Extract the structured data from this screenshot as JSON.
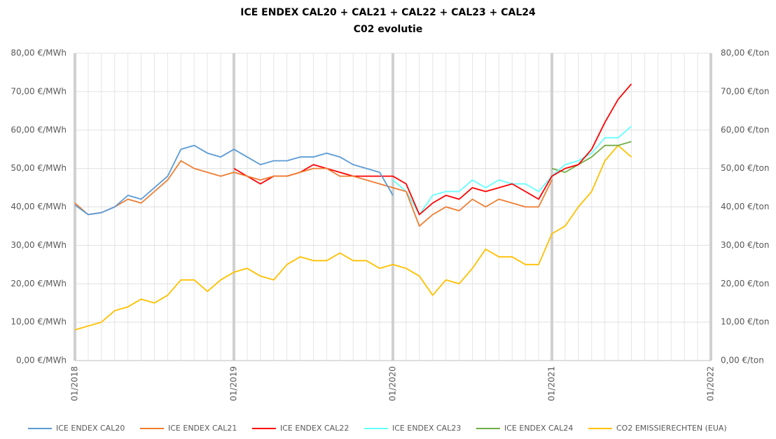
{
  "chart_data": {
    "type": "line",
    "title": "ICE ENDEX CAL20 + CAL21 + CAL22 + CAL23 + CAL24",
    "subtitle": "C02 evolutie",
    "x": [
      "01/2018",
      "02/2018",
      "03/2018",
      "04/2018",
      "05/2018",
      "06/2018",
      "07/2018",
      "08/2018",
      "09/2018",
      "10/2018",
      "11/2018",
      "12/2018",
      "01/2019",
      "02/2019",
      "03/2019",
      "04/2019",
      "05/2019",
      "06/2019",
      "07/2019",
      "08/2019",
      "09/2019",
      "10/2019",
      "11/2019",
      "12/2019",
      "01/2020",
      "02/2020",
      "03/2020",
      "04/2020",
      "05/2020",
      "06/2020",
      "07/2020",
      "08/2020",
      "09/2020",
      "10/2020",
      "11/2020",
      "12/2020",
      "01/2021",
      "02/2021",
      "03/2021",
      "04/2021",
      "05/2021",
      "06/2021",
      "07/2021"
    ],
    "xlim": [
      "01/2018",
      "01/2022"
    ],
    "xticks": [
      "01/2018",
      "01/2019",
      "01/2020",
      "01/2021",
      "01/2022"
    ],
    "ylim": [
      0,
      80
    ],
    "yticks": [
      {
        "value": 0,
        "label": "0,00 €/MWh"
      },
      {
        "value": 10,
        "label": "10,00 €/MWh"
      },
      {
        "value": 20,
        "label": "20,00 €/MWh"
      },
      {
        "value": 30,
        "label": "30,00 €/MWh"
      },
      {
        "value": 40,
        "label": "40,00 €/MWh"
      },
      {
        "value": 50,
        "label": "50,00 €/MWh"
      },
      {
        "value": 60,
        "label": "60,00 €/MWh"
      },
      {
        "value": 70,
        "label": "70,00 €/MWh"
      },
      {
        "value": 80,
        "label": "80,00 €/MWh"
      }
    ],
    "y2lim": [
      0,
      80
    ],
    "y2ticks": [
      {
        "value": 0,
        "label": "0,00 €/ton"
      },
      {
        "value": 10,
        "label": "10,00 €/ton"
      },
      {
        "value": 20,
        "label": "20,00 €/ton"
      },
      {
        "value": 30,
        "label": "30,00 €/ton"
      },
      {
        "value": 40,
        "label": "40,00 €/ton"
      },
      {
        "value": 50,
        "label": "50,00 €/ton"
      },
      {
        "value": 60,
        "label": "60,00 €/ton"
      },
      {
        "value": 70,
        "label": "70,00 €/ton"
      },
      {
        "value": 80,
        "label": "80,00 €/ton"
      }
    ],
    "legend": "bottom",
    "series": [
      {
        "name": "ICE ENDEX CAL20",
        "color": "#5b9bd5",
        "values": [
          40.5,
          38,
          38.5,
          40,
          43,
          42,
          45,
          48,
          55,
          56,
          54,
          53,
          55,
          53,
          51,
          52,
          52,
          53,
          53,
          54,
          53,
          51,
          50,
          49,
          43,
          null,
          null,
          null,
          null,
          null,
          null,
          null,
          null,
          null,
          null,
          null,
          null,
          null,
          null,
          null,
          null,
          null,
          null
        ]
      },
      {
        "name": "ICE ENDEX CAL21",
        "color": "#ed7d31",
        "values": [
          41,
          38,
          38.5,
          40,
          42,
          41,
          44,
          47,
          52,
          50,
          49,
          48,
          49,
          48,
          47,
          48,
          48,
          49,
          50,
          50,
          48,
          48,
          47,
          46,
          45,
          44,
          35,
          38,
          40,
          39,
          42,
          40,
          42,
          41,
          40,
          40,
          47,
          null,
          null,
          null,
          null,
          null,
          null
        ]
      },
      {
        "name": "ICE ENDEX CAL22",
        "color": "#ff0000",
        "values": [
          null,
          null,
          null,
          null,
          null,
          null,
          null,
          null,
          null,
          null,
          null,
          null,
          50,
          48,
          46,
          48,
          48,
          49,
          51,
          50,
          49,
          48,
          48,
          48,
          48,
          46,
          38,
          41,
          43,
          42,
          45,
          44,
          45,
          46,
          44,
          42,
          48,
          50,
          51,
          55,
          62,
          68,
          72
        ]
      },
      {
        "name": "ICE ENDEX CAL23",
        "color": "#66ffff",
        "values": [
          null,
          null,
          null,
          null,
          null,
          null,
          null,
          null,
          null,
          null,
          null,
          null,
          null,
          null,
          null,
          null,
          null,
          null,
          null,
          null,
          null,
          null,
          null,
          null,
          47,
          44,
          38,
          43,
          44,
          44,
          47,
          45,
          47,
          46,
          46,
          44,
          48,
          51,
          52,
          54,
          58,
          58,
          61
        ]
      },
      {
        "name": "ICE ENDEX CAL24",
        "color": "#70ad47",
        "values": [
          null,
          null,
          null,
          null,
          null,
          null,
          null,
          null,
          null,
          null,
          null,
          null,
          null,
          null,
          null,
          null,
          null,
          null,
          null,
          null,
          null,
          null,
          null,
          null,
          null,
          null,
          null,
          null,
          null,
          null,
          null,
          null,
          null,
          null,
          null,
          null,
          50,
          49,
          51,
          53,
          56,
          56,
          57
        ]
      },
      {
        "name": "CO2 EMISSIERECHTEN (EUA)",
        "color": "#ffc000",
        "axis": "y2",
        "values": [
          8,
          9,
          10,
          13,
          14,
          16,
          15,
          17,
          21,
          21,
          18,
          21,
          23,
          24,
          22,
          21,
          25,
          27,
          26,
          26,
          28,
          26,
          26,
          24,
          25,
          24,
          22,
          17,
          21,
          20,
          24,
          29,
          27,
          27,
          25,
          25,
          33,
          35,
          40,
          44,
          52,
          56,
          53
        ]
      }
    ]
  }
}
